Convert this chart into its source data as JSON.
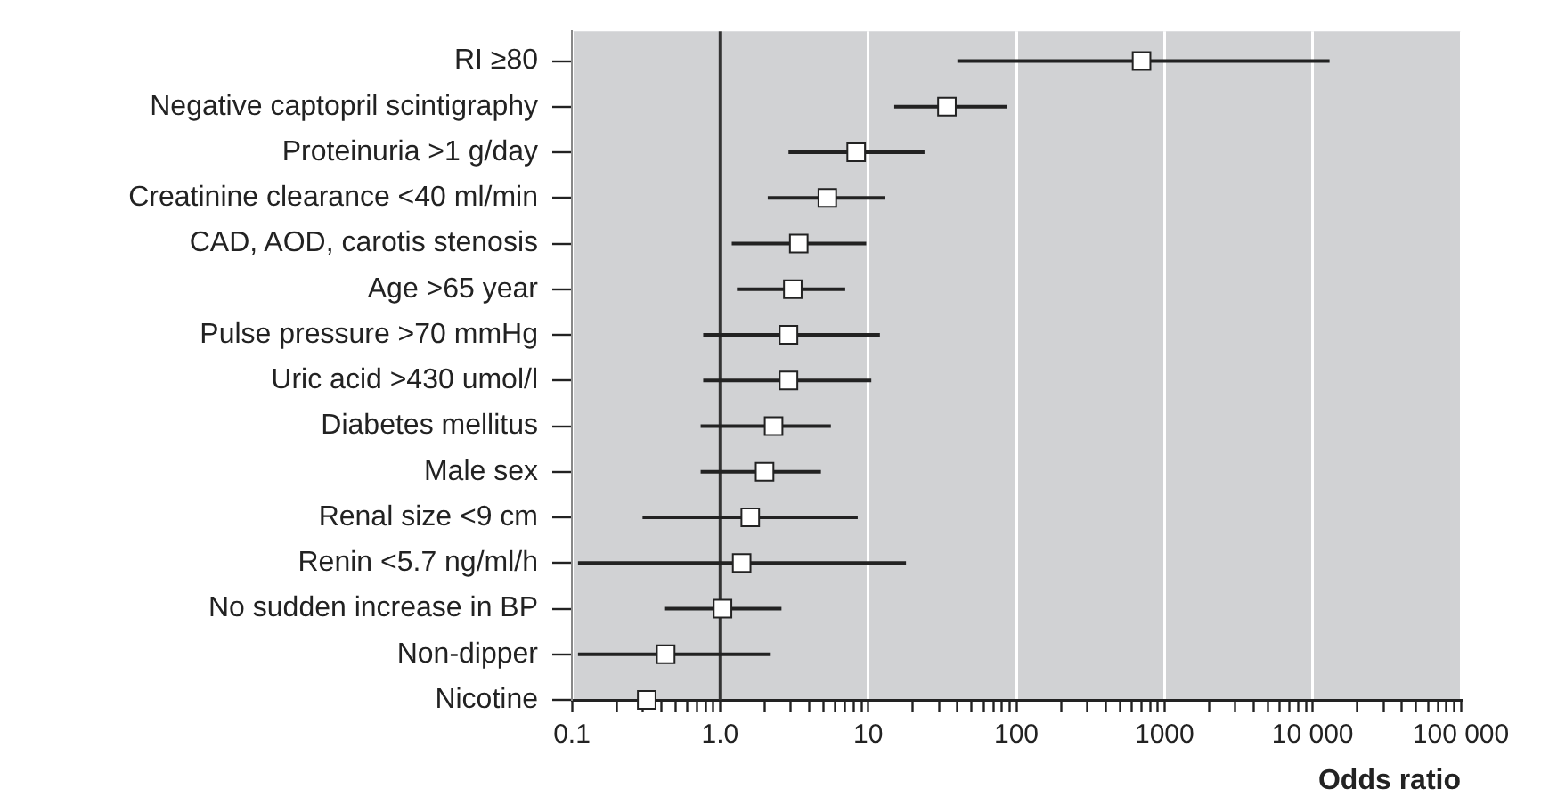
{
  "chart_data": {
    "type": "scatter",
    "orientation": "horizontal",
    "xlabel": "Odds ratio",
    "log": "x",
    "grid": "x",
    "marker": "square",
    "color": "#ffffff",
    "categories": [
      "RI ≥80",
      "Negative captopril scintigraphy",
      "Proteinuria >1 g/day",
      "Creatinine clearance <40 ml/min",
      "CAD, AOD, carotis stenosis",
      "Age >65 year",
      "Pulse pressure >70 mmHg",
      "Uric acid >430 umol/l",
      "Diabetes mellitus",
      "Male sex",
      "Renal size <9 cm",
      "Renin <5.7 ng/ml/h",
      "No sudden increase in BP",
      "Non-dipper",
      "Nicotine"
    ],
    "values": [
      700,
      34,
      8.3,
      5.3,
      3.4,
      3.1,
      2.9,
      2.9,
      2.3,
      2.0,
      1.6,
      1.4,
      1.04,
      0.43,
      0.32
    ],
    "errors": [
      [
        40,
        13000
      ],
      [
        15,
        86
      ],
      [
        2.9,
        24
      ],
      [
        2.1,
        13
      ],
      [
        1.2,
        9.7
      ],
      [
        1.3,
        7.0
      ],
      [
        0.77,
        12
      ],
      [
        0.77,
        10.5
      ],
      [
        0.74,
        5.6
      ],
      [
        0.74,
        4.8
      ],
      [
        0.3,
        8.5
      ],
      [
        0.11,
        18
      ],
      [
        0.42,
        2.6
      ],
      [
        0.11,
        2.2
      ],
      null
    ],
    "xlim": [
      0.1,
      100000
    ],
    "xticks": [
      0.1,
      {
        "value": 0.2,
        "label": null
      },
      {
        "value": 0.3,
        "label": null
      },
      {
        "value": 0.4,
        "label": null
      },
      {
        "value": 0.5,
        "label": null
      },
      {
        "value": 0.6,
        "label": null
      },
      {
        "value": 0.7,
        "label": null
      },
      {
        "value": 0.8,
        "label": null
      },
      {
        "value": 0.9,
        "label": null
      },
      {
        "value": 1,
        "label": "1.0"
      },
      {
        "value": 2,
        "label": null
      },
      {
        "value": 3,
        "label": null
      },
      {
        "value": 4,
        "label": null
      },
      {
        "value": 5,
        "label": null
      },
      {
        "value": 6,
        "label": null
      },
      {
        "value": 7,
        "label": null
      },
      {
        "value": 8,
        "label": null
      },
      {
        "value": 9,
        "label": null
      },
      10,
      {
        "value": 20,
        "label": null
      },
      {
        "value": 30,
        "label": null
      },
      {
        "value": 40,
        "label": null
      },
      {
        "value": 50,
        "label": null
      },
      {
        "value": 60,
        "label": null
      },
      {
        "value": 70,
        "label": null
      },
      {
        "value": 80,
        "label": null
      },
      {
        "value": 90,
        "label": null
      },
      100,
      {
        "value": 200,
        "label": null
      },
      {
        "value": 300,
        "label": null
      },
      {
        "value": 400,
        "label": null
      },
      {
        "value": 500,
        "label": null
      },
      {
        "value": 600,
        "label": null
      },
      {
        "value": 700,
        "label": null
      },
      {
        "value": 800,
        "label": null
      },
      {
        "value": 900,
        "label": null
      },
      1000,
      {
        "value": 2000,
        "label": null
      },
      {
        "value": 3000,
        "label": null
      },
      {
        "value": 4000,
        "label": null
      },
      {
        "value": 5000,
        "label": null
      },
      {
        "value": 6000,
        "label": null
      },
      {
        "value": 7000,
        "label": null
      },
      {
        "value": 8000,
        "label": null
      },
      {
        "value": 9000,
        "label": null
      },
      {
        "value": 10000,
        "label": "10 000"
      },
      {
        "value": 20000,
        "label": null
      },
      {
        "value": 30000,
        "label": null
      },
      {
        "value": 40000,
        "label": null
      },
      {
        "value": 50000,
        "label": null
      },
      {
        "value": 60000,
        "label": null
      },
      {
        "value": 70000,
        "label": null
      },
      {
        "value": 80000,
        "label": null
      },
      {
        "value": 90000,
        "label": null
      },
      {
        "value": 100000,
        "label": "100 000"
      }
    ],
    "ref_lines": [
      {
        "axis": "x",
        "value": 1,
        "color": "#333333"
      }
    ]
  }
}
